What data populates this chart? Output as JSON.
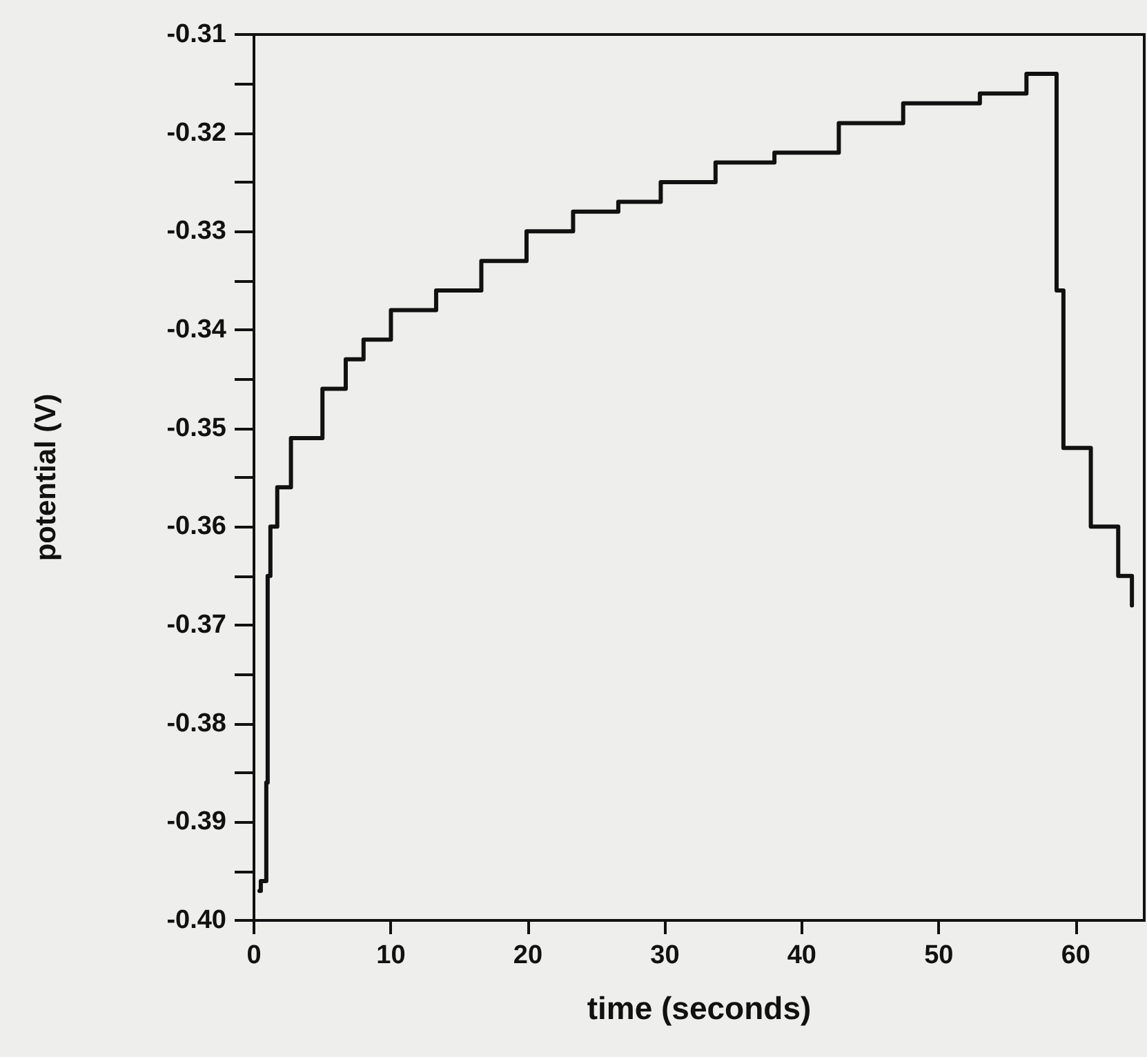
{
  "chart_data": {
    "type": "step",
    "xlabel": "time (seconds)",
    "ylabel": "potential (V)",
    "x": [
      0.4,
      0.5,
      0.9,
      1.0,
      1.2,
      1.7,
      2.7,
      5.0,
      6.7,
      8.0,
      10.0,
      13.3,
      16.6,
      19.9,
      23.3,
      26.6,
      29.7,
      31.3,
      33.7,
      38.0,
      42.7,
      47.4,
      53.0,
      56.4,
      58.6,
      59.1,
      61.1,
      63.1,
      64.1
    ],
    "values": [
      -0.397,
      -0.396,
      -0.386,
      -0.365,
      -0.36,
      -0.356,
      -0.351,
      -0.346,
      -0.343,
      -0.341,
      -0.338,
      -0.336,
      -0.333,
      -0.33,
      -0.328,
      -0.327,
      -0.325,
      -0.325,
      -0.323,
      -0.322,
      -0.319,
      -0.317,
      -0.316,
      -0.314,
      -0.336,
      -0.352,
      -0.36,
      -0.365,
      -0.368
    ],
    "color": "#111111",
    "marker": "none",
    "line_style": "solid",
    "grid": false,
    "xlim": [
      0,
      65
    ],
    "xticks": [
      0,
      10,
      20,
      30,
      40,
      50,
      60
    ],
    "ylim": [
      -0.4,
      -0.31
    ],
    "yticks": [
      {
        "value": -0.4,
        "label": "-0.40"
      },
      {
        "value": -0.395,
        "label": null
      },
      {
        "value": -0.39,
        "label": "-0.39"
      },
      {
        "value": -0.385,
        "label": null
      },
      {
        "value": -0.38,
        "label": "-0.38"
      },
      {
        "value": -0.375,
        "label": null
      },
      {
        "value": -0.37,
        "label": "-0.37"
      },
      {
        "value": -0.365,
        "label": null
      },
      {
        "value": -0.36,
        "label": "-0.36"
      },
      {
        "value": -0.355,
        "label": null
      },
      {
        "value": -0.35,
        "label": "-0.35"
      },
      {
        "value": -0.345,
        "label": null
      },
      {
        "value": -0.34,
        "label": "-0.34"
      },
      {
        "value": -0.335,
        "label": null
      },
      {
        "value": -0.33,
        "label": "-0.33"
      },
      {
        "value": -0.325,
        "label": null
      },
      {
        "value": -0.32,
        "label": "-0.32"
      },
      {
        "value": -0.315,
        "label": null
      },
      {
        "value": -0.31,
        "label": "-0.31"
      }
    ]
  }
}
